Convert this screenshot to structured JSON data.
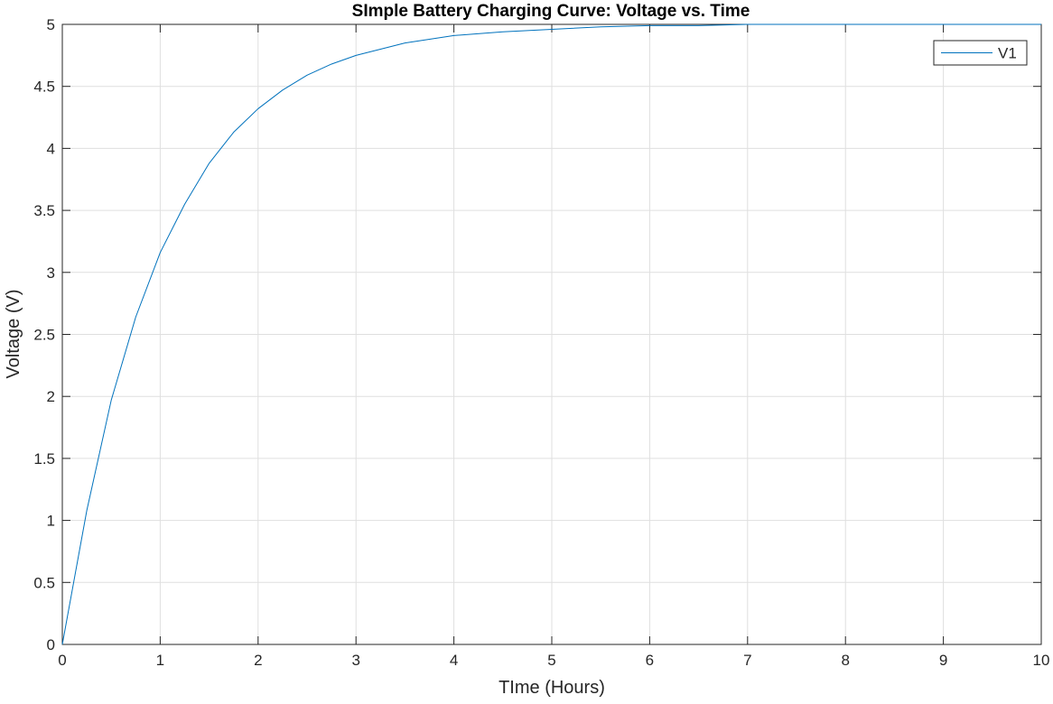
{
  "chart_data": {
    "type": "line",
    "title": "SImple Battery Charging Curve: Voltage vs. Time",
    "xlabel": "TIme (Hours)",
    "ylabel": "Voltage (V)",
    "xlim": [
      0,
      10
    ],
    "ylim": [
      0,
      5
    ],
    "xticks": [
      0,
      1,
      2,
      3,
      4,
      5,
      6,
      7,
      8,
      9,
      10
    ],
    "yticks": [
      0,
      0.5,
      1,
      1.5,
      2,
      2.5,
      3,
      3.5,
      4,
      4.5,
      5
    ],
    "grid": true,
    "legend_position": "top-right",
    "series": [
      {
        "name": "V1",
        "color": "#0072BD",
        "x": [
          0,
          0.25,
          0.5,
          0.75,
          1,
          1.25,
          1.5,
          1.75,
          2,
          2.25,
          2.5,
          2.75,
          3,
          3.5,
          4,
          4.5,
          5,
          5.5,
          6,
          6.5,
          7,
          7.5,
          8,
          8.5,
          9,
          9.5,
          10
        ],
        "y": [
          0,
          1.08,
          1.97,
          2.64,
          3.16,
          3.55,
          3.88,
          4.13,
          4.32,
          4.47,
          4.59,
          4.68,
          4.75,
          4.85,
          4.91,
          4.94,
          4.96,
          4.98,
          4.99,
          4.99,
          5.0,
          5.0,
          5.0,
          5.0,
          5.0,
          5.0,
          5.0
        ]
      }
    ]
  }
}
